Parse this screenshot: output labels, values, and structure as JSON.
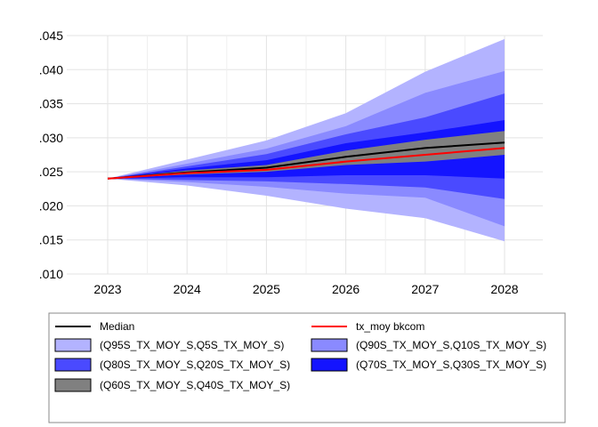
{
  "chart_data": {
    "type": "area",
    "x": [
      "2023",
      "2024",
      "2025",
      "2026",
      "2027",
      "2028"
    ],
    "y_ticks": [
      ".045",
      ".040",
      ".035",
      ".030",
      ".025",
      ".020",
      ".015",
      ".010"
    ],
    "ylim": [
      0.01,
      0.045
    ],
    "grid": true,
    "legend_position": "bottom",
    "bands": [
      {
        "name": "(Q95S_TX_MOY_S,Q5S_TX_MOY_S)",
        "color": "#b3b3ff",
        "upper": [
          0.024,
          0.0268,
          0.0296,
          0.0336,
          0.0397,
          0.0445
        ],
        "lower": [
          0.024,
          0.023,
          0.0215,
          0.0196,
          0.0182,
          0.0148
        ]
      },
      {
        "name": "(Q90S_TX_MOY_S,Q10S_TX_MOY_S)",
        "color": "#8a8aff",
        "upper": [
          0.024,
          0.0262,
          0.0284,
          0.0317,
          0.0366,
          0.0398
        ]
      },
      {
        "name": "(Q80S_TX_MOY_S,Q20S_TX_MOY_S)",
        "color": "#4a4aff",
        "upper": [
          0.024,
          0.0258,
          0.0276,
          0.0305,
          0.033,
          0.0365
        ]
      },
      {
        "name": "(Q70S_TX_MOY_S,Q30S_TX_MOY_S)",
        "color": "#1414ff",
        "upper": [
          0.024,
          0.0255,
          0.0267,
          0.0292,
          0.0308,
          0.0326
        ]
      },
      {
        "name": "(Q60S_TX_MOY_S,Q40S_TX_MOY_S)",
        "color": "#808080",
        "upper": [
          0.024,
          0.0252,
          0.026,
          0.0281,
          0.0297,
          0.031
        ]
      }
    ],
    "band_lower_bounds": {
      "q10": [
        0.024,
        0.0235,
        0.0228,
        0.0218,
        0.0212,
        0.017
      ],
      "q20": [
        0.024,
        0.0238,
        0.0236,
        0.0232,
        0.0227,
        0.021
      ],
      "q30": [
        0.024,
        0.0242,
        0.0242,
        0.0245,
        0.0245,
        0.024
      ],
      "q40": [
        0.024,
        0.0246,
        0.025,
        0.026,
        0.0265,
        0.0275
      ]
    },
    "series": [
      {
        "name": "Median",
        "color": "#000000",
        "values": [
          0.024,
          0.0249,
          0.0256,
          0.0272,
          0.0285,
          0.0293
        ]
      },
      {
        "name": "tx_moy bkcom",
        "color": "#ff0000",
        "values": [
          0.024,
          0.0248,
          0.0253,
          0.0265,
          0.0275,
          0.0285
        ]
      }
    ]
  },
  "legend": {
    "items": [
      {
        "label": "Median",
        "kind": "line",
        "color": "#000000"
      },
      {
        "label": "tx_moy bkcom",
        "kind": "line",
        "color": "#ff0000"
      },
      {
        "label": "(Q95S_TX_MOY_S,Q5S_TX_MOY_S)",
        "kind": "box",
        "color": "#b3b3ff"
      },
      {
        "label": "(Q90S_TX_MOY_S,Q10S_TX_MOY_S)",
        "kind": "box",
        "color": "#8a8aff"
      },
      {
        "label": "(Q80S_TX_MOY_S,Q20S_TX_MOY_S)",
        "kind": "box",
        "color": "#4a4aff"
      },
      {
        "label": "(Q70S_TX_MOY_S,Q30S_TX_MOY_S)",
        "kind": "box",
        "color": "#1414ff"
      },
      {
        "label": "(Q60S_TX_MOY_S,Q40S_TX_MOY_S)",
        "kind": "box",
        "color": "#808080"
      }
    ]
  }
}
